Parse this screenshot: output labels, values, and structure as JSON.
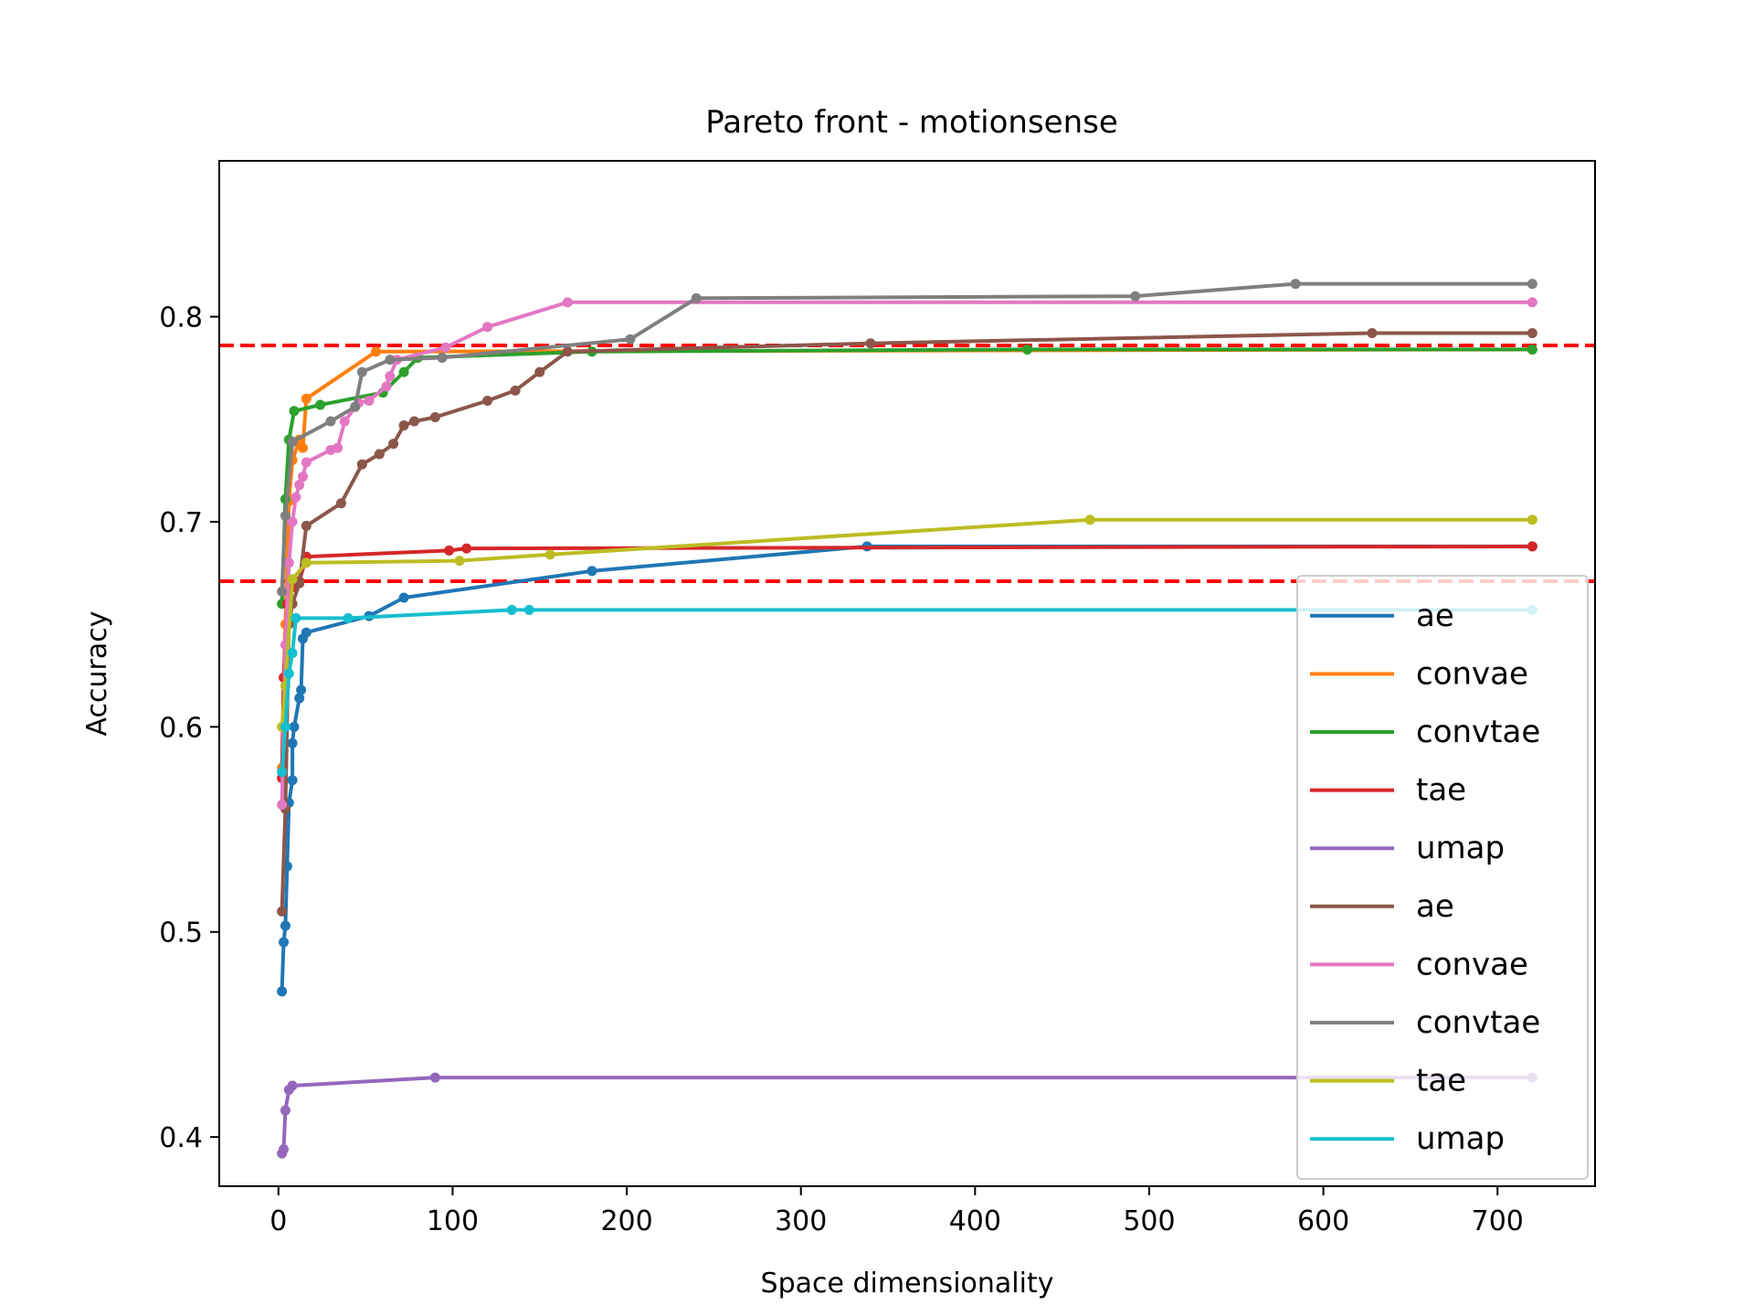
{
  "chart_data": {
    "type": "line",
    "title": "Pareto front - motionsense",
    "xlabel": "Space dimensionality",
    "ylabel": "Accuracy",
    "xlim": [
      -34,
      756
    ],
    "ylim": [
      0.376,
      0.876
    ],
    "xticks": [
      0,
      100,
      200,
      300,
      400,
      500,
      600,
      700
    ],
    "yticks": [
      0.4,
      0.5,
      0.6,
      0.7,
      0.8
    ],
    "grid": false,
    "legend_position": "lower right",
    "reference_lines": [
      {
        "y": 0.786,
        "color": "#ff0000",
        "style": "dashed"
      },
      {
        "y": 0.671,
        "color": "#ff0000",
        "style": "dashed"
      }
    ],
    "series": [
      {
        "name": "ae",
        "color": "#1f77b4",
        "points": [
          [
            2,
            0.471
          ],
          [
            3,
            0.495
          ],
          [
            4,
            0.503
          ],
          [
            5,
            0.532
          ],
          [
            6,
            0.563
          ],
          [
            8,
            0.574
          ],
          [
            8,
            0.592
          ],
          [
            9,
            0.6
          ],
          [
            12,
            0.614
          ],
          [
            13,
            0.618
          ],
          [
            14,
            0.643
          ],
          [
            16,
            0.646
          ],
          [
            52,
            0.654
          ],
          [
            72,
            0.663
          ],
          [
            180,
            0.676
          ],
          [
            338,
            0.688
          ],
          [
            720,
            0.688
          ]
        ]
      },
      {
        "name": "convae",
        "color": "#ff7f0e",
        "points": [
          [
            2,
            0.58
          ],
          [
            4,
            0.65
          ],
          [
            6,
            0.71
          ],
          [
            8,
            0.73
          ],
          [
            12,
            0.74
          ],
          [
            14,
            0.736
          ],
          [
            16,
            0.76
          ],
          [
            56,
            0.783
          ],
          [
            720,
            0.784
          ]
        ]
      },
      {
        "name": "convtae",
        "color": "#2ca02c",
        "points": [
          [
            2,
            0.66
          ],
          [
            4,
            0.711
          ],
          [
            6,
            0.74
          ],
          [
            9,
            0.754
          ],
          [
            24,
            0.757
          ],
          [
            60,
            0.763
          ],
          [
            72,
            0.773
          ],
          [
            80,
            0.78
          ],
          [
            180,
            0.783
          ],
          [
            430,
            0.784
          ],
          [
            720,
            0.784
          ]
        ]
      },
      {
        "name": "tae",
        "color": "#d62728",
        "points": [
          [
            2,
            0.575
          ],
          [
            3,
            0.624
          ],
          [
            5,
            0.66
          ],
          [
            8,
            0.668
          ],
          [
            12,
            0.671
          ],
          [
            16,
            0.683
          ],
          [
            98,
            0.686
          ],
          [
            108,
            0.687
          ],
          [
            720,
            0.688
          ]
        ]
      },
      {
        "name": "umap",
        "color": "#9467bd",
        "points": [
          [
            2,
            0.392
          ],
          [
            3,
            0.394
          ],
          [
            4,
            0.413
          ],
          [
            6,
            0.423
          ],
          [
            8,
            0.425
          ],
          [
            90,
            0.429
          ],
          [
            720,
            0.429
          ]
        ]
      },
      {
        "name": "ae",
        "color": "#8c564b",
        "points": [
          [
            2,
            0.51
          ],
          [
            4,
            0.56
          ],
          [
            6,
            0.65
          ],
          [
            8,
            0.66
          ],
          [
            12,
            0.67
          ],
          [
            16,
            0.698
          ],
          [
            36,
            0.709
          ],
          [
            48,
            0.728
          ],
          [
            58,
            0.733
          ],
          [
            66,
            0.738
          ],
          [
            72,
            0.747
          ],
          [
            78,
            0.749
          ],
          [
            90,
            0.751
          ],
          [
            120,
            0.759
          ],
          [
            136,
            0.764
          ],
          [
            150,
            0.773
          ],
          [
            166,
            0.783
          ],
          [
            340,
            0.787
          ],
          [
            628,
            0.792
          ],
          [
            720,
            0.792
          ]
        ]
      },
      {
        "name": "convae",
        "color": "#e377c2",
        "points": [
          [
            2,
            0.562
          ],
          [
            3,
            0.6
          ],
          [
            4,
            0.64
          ],
          [
            6,
            0.68
          ],
          [
            8,
            0.7
          ],
          [
            10,
            0.712
          ],
          [
            12,
            0.718
          ],
          [
            14,
            0.722
          ],
          [
            16,
            0.729
          ],
          [
            30,
            0.735
          ],
          [
            34,
            0.736
          ],
          [
            38,
            0.749
          ],
          [
            46,
            0.758
          ],
          [
            52,
            0.759
          ],
          [
            62,
            0.766
          ],
          [
            64,
            0.771
          ],
          [
            68,
            0.779
          ],
          [
            96,
            0.785
          ],
          [
            120,
            0.795
          ],
          [
            166,
            0.807
          ],
          [
            720,
            0.807
          ]
        ]
      },
      {
        "name": "convtae",
        "color": "#7f7f7f",
        "points": [
          [
            2,
            0.666
          ],
          [
            4,
            0.703
          ],
          [
            8,
            0.739
          ],
          [
            30,
            0.749
          ],
          [
            44,
            0.756
          ],
          [
            48,
            0.773
          ],
          [
            64,
            0.779
          ],
          [
            94,
            0.78
          ],
          [
            202,
            0.789
          ],
          [
            240,
            0.809
          ],
          [
            492,
            0.81
          ],
          [
            584,
            0.816
          ],
          [
            720,
            0.816
          ]
        ]
      },
      {
        "name": "tae",
        "color": "#bcbd22",
        "points": [
          [
            2,
            0.6
          ],
          [
            4,
            0.62
          ],
          [
            8,
            0.672
          ],
          [
            16,
            0.68
          ],
          [
            104,
            0.681
          ],
          [
            156,
            0.684
          ],
          [
            466,
            0.701
          ],
          [
            720,
            0.701
          ]
        ]
      },
      {
        "name": "umap",
        "color": "#17becf",
        "points": [
          [
            2,
            0.578
          ],
          [
            4,
            0.6
          ],
          [
            6,
            0.626
          ],
          [
            8,
            0.636
          ],
          [
            10,
            0.653
          ],
          [
            40,
            0.653
          ],
          [
            134,
            0.657
          ],
          [
            144,
            0.657
          ],
          [
            720,
            0.657
          ]
        ]
      }
    ]
  }
}
